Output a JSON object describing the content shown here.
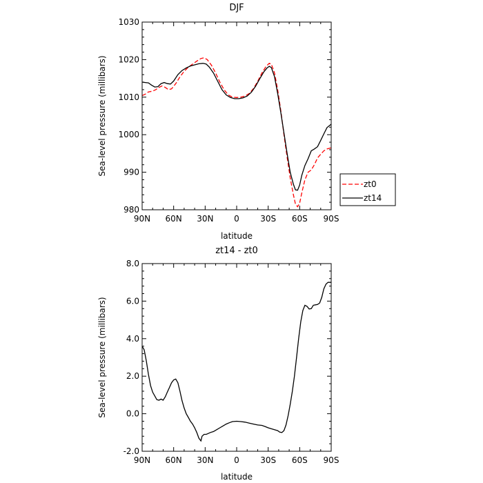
{
  "chart_data": [
    {
      "type": "line",
      "title": "DJF",
      "xlabel": "latitude",
      "ylabel": "Sea-level pressure (millibars)",
      "xlim": [
        -90,
        90
      ],
      "ylim": [
        980,
        1030
      ],
      "x_ticks": [
        -90,
        -60,
        -30,
        0,
        30,
        60,
        90
      ],
      "x_tick_labels": [
        "90N",
        "60N",
        "30N",
        "0",
        "30S",
        "60S",
        "90S"
      ],
      "y_ticks": [
        980,
        990,
        1000,
        1010,
        1020,
        1030
      ],
      "y_tick_labels": [
        "980",
        "990",
        "1000",
        "1010",
        "1020",
        "1030"
      ],
      "grid": false,
      "legend_position": "right",
      "series": [
        {
          "name": "zt0",
          "color": "#ff0000",
          "dash": "dashed",
          "points": [
            [
              -90,
              1010.4
            ],
            [
              -87,
              1010.8
            ],
            [
              -84,
              1011.4
            ],
            [
              -80,
              1011.6
            ],
            [
              -77,
              1012.0
            ],
            [
              -74,
              1012.6
            ],
            [
              -71,
              1013.0
            ],
            [
              -68,
              1012.6
            ],
            [
              -65,
              1012.0
            ],
            [
              -62,
              1012.2
            ],
            [
              -58,
              1013.6
            ],
            [
              -54,
              1015.4
            ],
            [
              -50,
              1016.9
            ],
            [
              -46,
              1018.0
            ],
            [
              -42,
              1018.8
            ],
            [
              -38,
              1019.6
            ],
            [
              -34,
              1020.3
            ],
            [
              -31,
              1020.5
            ],
            [
              -28,
              1020.0
            ],
            [
              -24,
              1018.5
            ],
            [
              -20,
              1016.4
            ],
            [
              -16,
              1014.0
            ],
            [
              -12,
              1012.0
            ],
            [
              -8,
              1010.6
            ],
            [
              -4,
              1010.0
            ],
            [
              0,
              1009.9
            ],
            [
              4,
              1010.0
            ],
            [
              8,
              1010.3
            ],
            [
              12,
              1011.0
            ],
            [
              16,
              1012.3
            ],
            [
              20,
              1014.2
            ],
            [
              24,
              1016.4
            ],
            [
              28,
              1018.2
            ],
            [
              31,
              1019.0
            ],
            [
              33,
              1018.8
            ],
            [
              36,
              1016.5
            ],
            [
              39,
              1012.0
            ],
            [
              42,
              1006.5
            ],
            [
              45,
              1000.0
            ],
            [
              48,
              994.0
            ],
            [
              51,
              988.5
            ],
            [
              54,
              984.0
            ],
            [
              56,
              981.5
            ],
            [
              58,
              980.8
            ],
            [
              60,
              981.8
            ],
            [
              62,
              984.5
            ],
            [
              65,
              988.0
            ],
            [
              68,
              990.0
            ],
            [
              71,
              990.6
            ],
            [
              74,
              992.0
            ],
            [
              77,
              993.8
            ],
            [
              80,
              994.8
            ],
            [
              83,
              995.7
            ],
            [
              86,
              996.2
            ],
            [
              90,
              996.5
            ]
          ]
        },
        {
          "name": "zt14",
          "color": "#000000",
          "dash": "solid",
          "points": [
            [
              -90,
              1014.0
            ],
            [
              -87,
              1013.9
            ],
            [
              -84,
              1013.8
            ],
            [
              -81,
              1013.2
            ],
            [
              -78,
              1012.7
            ],
            [
              -75,
              1012.8
            ],
            [
              -72,
              1013.6
            ],
            [
              -69,
              1013.9
            ],
            [
              -66,
              1013.6
            ],
            [
              -63,
              1013.5
            ],
            [
              -60,
              1014.3
            ],
            [
              -56,
              1016.0
            ],
            [
              -52,
              1017.1
            ],
            [
              -48,
              1017.8
            ],
            [
              -44,
              1018.3
            ],
            [
              -40,
              1018.6
            ],
            [
              -36,
              1018.9
            ],
            [
              -32,
              1019.0
            ],
            [
              -29,
              1018.8
            ],
            [
              -26,
              1018.0
            ],
            [
              -22,
              1016.4
            ],
            [
              -18,
              1014.2
            ],
            [
              -14,
              1012.0
            ],
            [
              -10,
              1010.6
            ],
            [
              -6,
              1009.9
            ],
            [
              -2,
              1009.6
            ],
            [
              2,
              1009.6
            ],
            [
              6,
              1009.8
            ],
            [
              10,
              1010.3
            ],
            [
              14,
              1011.3
            ],
            [
              18,
              1012.9
            ],
            [
              22,
              1014.9
            ],
            [
              26,
              1016.8
            ],
            [
              29,
              1017.8
            ],
            [
              31,
              1018.2
            ],
            [
              33,
              1017.9
            ],
            [
              36,
              1015.5
            ],
            [
              39,
              1011.0
            ],
            [
              42,
              1006.0
            ],
            [
              45,
              1000.5
            ],
            [
              48,
              995.0
            ],
            [
              51,
              990.0
            ],
            [
              54,
              986.8
            ],
            [
              56,
              985.3
            ],
            [
              58,
              985.2
            ],
            [
              60,
              986.6
            ],
            [
              62,
              989.2
            ],
            [
              65,
              991.8
            ],
            [
              68,
              993.6
            ],
            [
              71,
              995.7
            ],
            [
              74,
              996.2
            ],
            [
              77,
              996.8
            ],
            [
              80,
              998.5
            ],
            [
              83,
              1000.2
            ],
            [
              86,
              1001.9
            ],
            [
              90,
              1002.8
            ]
          ]
        }
      ]
    },
    {
      "type": "line",
      "title": "zt14 - zt0",
      "xlabel": "latitude",
      "ylabel": "Sea-level pressure (millibars)",
      "xlim": [
        -90,
        90
      ],
      "ylim": [
        -2.0,
        8.0
      ],
      "x_ticks": [
        -90,
        -60,
        -30,
        0,
        30,
        60,
        90
      ],
      "x_tick_labels": [
        "90N",
        "60N",
        "30N",
        "0",
        "30S",
        "60S",
        "90S"
      ],
      "y_ticks": [
        -2,
        0,
        2,
        4,
        6,
        8
      ],
      "y_tick_labels": [
        "-2.0",
        "0.0",
        "2.0",
        "4.0",
        "6.0",
        "8.0"
      ],
      "grid": false,
      "series": [
        {
          "color": "#000000",
          "dash": "solid",
          "points": [
            [
              -90,
              3.6
            ],
            [
              -88,
              3.4
            ],
            [
              -86,
              2.8
            ],
            [
              -84,
              2.1
            ],
            [
              -82,
              1.5
            ],
            [
              -80,
              1.15
            ],
            [
              -78,
              0.95
            ],
            [
              -76,
              0.75
            ],
            [
              -74,
              0.72
            ],
            [
              -72,
              0.78
            ],
            [
              -70,
              0.72
            ],
            [
              -68,
              0.9
            ],
            [
              -66,
              1.15
            ],
            [
              -64,
              1.4
            ],
            [
              -62,
              1.65
            ],
            [
              -60,
              1.8
            ],
            [
              -58,
              1.85
            ],
            [
              -56,
              1.65
            ],
            [
              -54,
              1.2
            ],
            [
              -52,
              0.7
            ],
            [
              -50,
              0.3
            ],
            [
              -48,
              0.0
            ],
            [
              -46,
              -0.2
            ],
            [
              -44,
              -0.4
            ],
            [
              -42,
              -0.55
            ],
            [
              -40,
              -0.75
            ],
            [
              -38,
              -1.0
            ],
            [
              -36,
              -1.3
            ],
            [
              -34,
              -1.45
            ],
            [
              -33,
              -1.2
            ],
            [
              -31,
              -1.1
            ],
            [
              -29,
              -1.1
            ],
            [
              -27,
              -1.05
            ],
            [
              -25,
              -1.0
            ],
            [
              -22,
              -0.95
            ],
            [
              -19,
              -0.85
            ],
            [
              -16,
              -0.75
            ],
            [
              -13,
              -0.65
            ],
            [
              -10,
              -0.55
            ],
            [
              -7,
              -0.48
            ],
            [
              -4,
              -0.42
            ],
            [
              0,
              -0.4
            ],
            [
              4,
              -0.42
            ],
            [
              8,
              -0.45
            ],
            [
              12,
              -0.5
            ],
            [
              16,
              -0.55
            ],
            [
              20,
              -0.6
            ],
            [
              24,
              -0.62
            ],
            [
              27,
              -0.68
            ],
            [
              30,
              -0.75
            ],
            [
              33,
              -0.8
            ],
            [
              36,
              -0.85
            ],
            [
              39,
              -0.9
            ],
            [
              41,
              -0.98
            ],
            [
              43,
              -1.0
            ],
            [
              45,
              -0.9
            ],
            [
              47,
              -0.6
            ],
            [
              49,
              -0.1
            ],
            [
              51,
              0.5
            ],
            [
              53,
              1.2
            ],
            [
              55,
              2.0
            ],
            [
              57,
              3.0
            ],
            [
              59,
              4.0
            ],
            [
              61,
              4.9
            ],
            [
              63,
              5.5
            ],
            [
              65,
              5.78
            ],
            [
              67,
              5.72
            ],
            [
              69,
              5.58
            ],
            [
              71,
              5.6
            ],
            [
              73,
              5.78
            ],
            [
              75,
              5.8
            ],
            [
              77,
              5.82
            ],
            [
              79,
              5.9
            ],
            [
              81,
              6.2
            ],
            [
              83,
              6.65
            ],
            [
              85,
              6.9
            ],
            [
              87,
              7.0
            ],
            [
              90,
              7.0
            ]
          ]
        }
      ]
    }
  ]
}
